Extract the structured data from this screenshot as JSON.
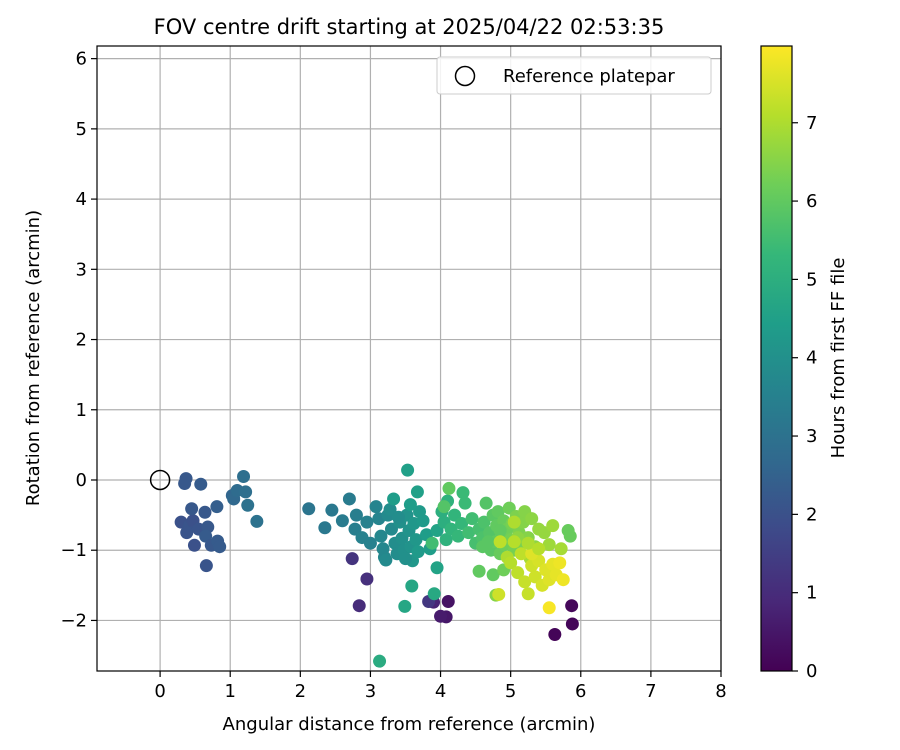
{
  "chart_data": {
    "type": "scatter",
    "title": "FOV centre drift starting at 2025/04/22 02:53:35",
    "xlabel": "Angular distance from reference (arcmin)",
    "ylabel": "Rotation from reference (arcmin)",
    "xlim": [
      -0.9,
      8.0
    ],
    "ylim": [
      -2.72,
      6.18
    ],
    "xticks": [
      "0",
      "1",
      "2",
      "3",
      "4",
      "5",
      "6",
      "7",
      "8"
    ],
    "yticks": [
      "−2",
      "−1",
      "0",
      "1",
      "2",
      "3",
      "4",
      "5",
      "6"
    ],
    "xtick_values": [
      0,
      1,
      2,
      3,
      4,
      5,
      6,
      7,
      8
    ],
    "ytick_values": [
      -2,
      -1,
      0,
      1,
      2,
      3,
      4,
      5,
      6
    ],
    "grid": true,
    "legend": {
      "position": "top-right",
      "entries": [
        {
          "label": "Reference platepar",
          "marker": "open-circle"
        }
      ]
    },
    "reference_point": {
      "x": 0,
      "y": 0
    },
    "colorbar": {
      "label": "Hours from first FF file",
      "range": [
        0,
        7.98
      ],
      "ticks": [
        "0",
        "1",
        "2",
        "3",
        "4",
        "5",
        "6",
        "7"
      ],
      "tick_values": [
        0,
        1,
        2,
        3,
        4,
        5,
        6,
        7
      ],
      "colormap": [
        "#440154",
        "#482878",
        "#3e4989",
        "#31688e",
        "#26828e",
        "#1f9e89",
        "#35b779",
        "#6ece58",
        "#b5de2b",
        "#fde725"
      ]
    },
    "points": [
      {
        "x": 5.87,
        "y": -1.79,
        "h": 0.15
      },
      {
        "x": 5.88,
        "y": -2.05,
        "h": 0.1
      },
      {
        "x": 5.63,
        "y": -2.2,
        "h": 0.1
      },
      {
        "x": 4.11,
        "y": -1.73,
        "h": 0.4
      },
      {
        "x": 4.08,
        "y": -1.95,
        "h": 0.5
      },
      {
        "x": 4.0,
        "y": -1.94,
        "h": 0.6
      },
      {
        "x": 3.9,
        "y": -1.74,
        "h": 0.8
      },
      {
        "x": 2.84,
        "y": -1.79,
        "h": 1.0
      },
      {
        "x": 2.95,
        "y": -1.41,
        "h": 1.1
      },
      {
        "x": 2.74,
        "y": -1.12,
        "h": 1.2
      },
      {
        "x": 3.83,
        "y": -1.73,
        "h": 1.3
      },
      {
        "x": 0.3,
        "y": -0.6,
        "h": 2.0
      },
      {
        "x": 0.35,
        "y": -0.05,
        "h": 2.2
      },
      {
        "x": 0.37,
        "y": 0.02,
        "h": 2.2
      },
      {
        "x": 0.58,
        "y": -0.06,
        "h": 2.3
      },
      {
        "x": 0.42,
        "y": -0.65,
        "h": 2.1
      },
      {
        "x": 0.38,
        "y": -0.75,
        "h": 2.1
      },
      {
        "x": 0.47,
        "y": -0.58,
        "h": 2.0
      },
      {
        "x": 0.49,
        "y": -0.93,
        "h": 2.0
      },
      {
        "x": 0.55,
        "y": -0.7,
        "h": 2.1
      },
      {
        "x": 0.45,
        "y": -0.41,
        "h": 2.2
      },
      {
        "x": 0.64,
        "y": -0.46,
        "h": 2.2
      },
      {
        "x": 0.68,
        "y": -0.67,
        "h": 2.2
      },
      {
        "x": 0.65,
        "y": -0.8,
        "h": 2.3
      },
      {
        "x": 0.66,
        "y": -1.22,
        "h": 2.1
      },
      {
        "x": 0.73,
        "y": -0.93,
        "h": 2.2
      },
      {
        "x": 0.82,
        "y": -0.87,
        "h": 2.3
      },
      {
        "x": 0.85,
        "y": -0.95,
        "h": 2.3
      },
      {
        "x": 0.81,
        "y": -0.38,
        "h": 2.4
      },
      {
        "x": 1.03,
        "y": -0.22,
        "h": 2.6
      },
      {
        "x": 1.05,
        "y": -0.27,
        "h": 2.7
      },
      {
        "x": 1.1,
        "y": -0.15,
        "h": 2.8
      },
      {
        "x": 1.19,
        "y": 0.05,
        "h": 2.9
      },
      {
        "x": 1.22,
        "y": -0.17,
        "h": 2.9
      },
      {
        "x": 1.25,
        "y": -0.36,
        "h": 3.0
      },
      {
        "x": 1.38,
        "y": -0.59,
        "h": 3.0
      },
      {
        "x": 2.12,
        "y": -0.41,
        "h": 3.1
      },
      {
        "x": 2.35,
        "y": -0.68,
        "h": 3.2
      },
      {
        "x": 2.45,
        "y": -0.43,
        "h": 3.2
      },
      {
        "x": 2.6,
        "y": -0.58,
        "h": 3.3
      },
      {
        "x": 2.7,
        "y": -0.27,
        "h": 3.3
      },
      {
        "x": 2.8,
        "y": -0.5,
        "h": 3.4
      },
      {
        "x": 2.78,
        "y": -0.7,
        "h": 3.4
      },
      {
        "x": 2.88,
        "y": -0.82,
        "h": 3.5
      },
      {
        "x": 2.95,
        "y": -0.6,
        "h": 3.5
      },
      {
        "x": 3.0,
        "y": -0.9,
        "h": 3.5
      },
      {
        "x": 3.08,
        "y": -0.38,
        "h": 3.6
      },
      {
        "x": 3.12,
        "y": -0.55,
        "h": 3.6
      },
      {
        "x": 3.15,
        "y": -0.8,
        "h": 3.7
      },
      {
        "x": 3.2,
        "y": -1.1,
        "h": 3.7
      },
      {
        "x": 3.25,
        "y": -0.5,
        "h": 3.8
      },
      {
        "x": 3.3,
        "y": -0.7,
        "h": 3.8
      },
      {
        "x": 3.35,
        "y": -0.9,
        "h": 3.9
      },
      {
        "x": 3.28,
        "y": -0.42,
        "h": 3.9
      },
      {
        "x": 3.38,
        "y": -1.05,
        "h": 3.9
      },
      {
        "x": 3.42,
        "y": -0.6,
        "h": 4.0
      },
      {
        "x": 3.45,
        "y": -0.83,
        "h": 4.0
      },
      {
        "x": 3.48,
        "y": -1.0,
        "h": 4.0
      },
      {
        "x": 3.52,
        "y": -0.5,
        "h": 4.1
      },
      {
        "x": 3.55,
        "y": -0.72,
        "h": 4.1
      },
      {
        "x": 3.58,
        "y": -0.95,
        "h": 4.1
      },
      {
        "x": 3.6,
        "y": -1.15,
        "h": 4.2
      },
      {
        "x": 3.62,
        "y": -0.62,
        "h": 4.2
      },
      {
        "x": 3.65,
        "y": -0.85,
        "h": 4.2
      },
      {
        "x": 3.68,
        "y": -1.02,
        "h": 4.3
      },
      {
        "x": 3.7,
        "y": -0.45,
        "h": 4.3
      },
      {
        "x": 3.75,
        "y": -0.58,
        "h": 4.3
      },
      {
        "x": 3.8,
        "y": -0.78,
        "h": 4.4
      },
      {
        "x": 3.85,
        "y": -0.98,
        "h": 4.4
      },
      {
        "x": 3.33,
        "y": -0.27,
        "h": 4.4
      },
      {
        "x": 3.4,
        "y": -0.53,
        "h": 3.9
      },
      {
        "x": 3.18,
        "y": -0.98,
        "h": 3.7
      },
      {
        "x": 3.22,
        "y": -1.14,
        "h": 3.8
      },
      {
        "x": 3.5,
        "y": -1.12,
        "h": 4.0
      },
      {
        "x": 3.53,
        "y": 0.14,
        "h": 4.5
      },
      {
        "x": 3.67,
        "y": -0.17,
        "h": 4.5
      },
      {
        "x": 3.57,
        "y": -0.35,
        "h": 4.4
      },
      {
        "x": 3.95,
        "y": -0.72,
        "h": 4.6
      },
      {
        "x": 3.95,
        "y": -1.25,
        "h": 4.6
      },
      {
        "x": 3.59,
        "y": -1.51,
        "h": 4.7
      },
      {
        "x": 3.49,
        "y": -1.8,
        "h": 4.7
      },
      {
        "x": 3.91,
        "y": -1.62,
        "h": 4.8
      },
      {
        "x": 3.13,
        "y": -2.58,
        "h": 4.9
      },
      {
        "x": 4.02,
        "y": -0.45,
        "h": 5.0
      },
      {
        "x": 4.05,
        "y": -0.6,
        "h": 5.0
      },
      {
        "x": 4.08,
        "y": -0.85,
        "h": 5.1
      },
      {
        "x": 4.1,
        "y": -0.3,
        "h": 5.1
      },
      {
        "x": 4.15,
        "y": -0.7,
        "h": 5.2
      },
      {
        "x": 4.2,
        "y": -0.5,
        "h": 5.2
      },
      {
        "x": 4.25,
        "y": -0.8,
        "h": 5.3
      },
      {
        "x": 4.3,
        "y": -0.62,
        "h": 5.3
      },
      {
        "x": 4.32,
        "y": -0.18,
        "h": 5.4
      },
      {
        "x": 4.35,
        "y": -0.33,
        "h": 5.4
      },
      {
        "x": 4.4,
        "y": -0.75,
        "h": 5.5
      },
      {
        "x": 4.45,
        "y": -0.55,
        "h": 5.5
      },
      {
        "x": 4.5,
        "y": -0.9,
        "h": 5.6
      },
      {
        "x": 4.55,
        "y": -0.7,
        "h": 5.6
      },
      {
        "x": 4.6,
        "y": -0.82,
        "h": 5.7
      },
      {
        "x": 4.62,
        "y": -0.6,
        "h": 5.7
      },
      {
        "x": 4.65,
        "y": -0.33,
        "h": 5.8
      },
      {
        "x": 4.7,
        "y": -0.75,
        "h": 5.8
      },
      {
        "x": 4.72,
        "y": -1.0,
        "h": 5.9
      },
      {
        "x": 4.75,
        "y": -0.5,
        "h": 5.9
      },
      {
        "x": 4.78,
        "y": -0.88,
        "h": 6.0
      },
      {
        "x": 4.8,
        "y": -0.65,
        "h": 6.0
      },
      {
        "x": 4.82,
        "y": -0.45,
        "h": 6.0
      },
      {
        "x": 4.85,
        "y": -1.05,
        "h": 6.1
      },
      {
        "x": 4.88,
        "y": -0.78,
        "h": 6.1
      },
      {
        "x": 4.9,
        "y": -0.58,
        "h": 6.1
      },
      {
        "x": 4.92,
        "y": -0.92,
        "h": 6.2
      },
      {
        "x": 4.95,
        "y": -0.7,
        "h": 6.2
      },
      {
        "x": 4.98,
        "y": -0.4,
        "h": 6.2
      },
      {
        "x": 5.0,
        "y": -0.85,
        "h": 6.3
      },
      {
        "x": 5.02,
        "y": -0.62,
        "h": 6.3
      },
      {
        "x": 5.05,
        "y": -1.0,
        "h": 6.3
      },
      {
        "x": 5.08,
        "y": -0.52,
        "h": 6.4
      },
      {
        "x": 5.12,
        "y": -0.75,
        "h": 6.4
      },
      {
        "x": 5.15,
        "y": -0.9,
        "h": 6.4
      },
      {
        "x": 5.18,
        "y": -0.6,
        "h": 6.5
      },
      {
        "x": 5.2,
        "y": -0.45,
        "h": 6.5
      },
      {
        "x": 5.25,
        "y": -0.82,
        "h": 6.5
      },
      {
        "x": 5.3,
        "y": -0.55,
        "h": 6.6
      },
      {
        "x": 5.35,
        "y": -0.95,
        "h": 6.6
      },
      {
        "x": 5.4,
        "y": -0.7,
        "h": 6.7
      },
      {
        "x": 5.48,
        "y": -0.75,
        "h": 6.7
      },
      {
        "x": 5.55,
        "y": -0.92,
        "h": 6.8
      },
      {
        "x": 5.6,
        "y": -0.65,
        "h": 6.8
      },
      {
        "x": 5.72,
        "y": -0.98,
        "h": 6.9
      },
      {
        "x": 5.82,
        "y": -0.72,
        "h": 6.1
      },
      {
        "x": 5.85,
        "y": -0.8,
        "h": 6.1
      },
      {
        "x": 4.55,
        "y": -1.3,
        "h": 6.0
      },
      {
        "x": 4.75,
        "y": -1.35,
        "h": 6.0
      },
      {
        "x": 4.9,
        "y": -1.28,
        "h": 6.2
      },
      {
        "x": 4.79,
        "y": -1.64,
        "h": 6.5
      },
      {
        "x": 4.12,
        "y": -0.12,
        "h": 6.0
      },
      {
        "x": 4.05,
        "y": -0.38,
        "h": 5.8
      },
      {
        "x": 3.88,
        "y": -0.9,
        "h": 5.5
      },
      {
        "x": 4.6,
        "y": -0.95,
        "h": 5.9
      },
      {
        "x": 4.68,
        "y": -0.88,
        "h": 5.9
      },
      {
        "x": 4.85,
        "y": -0.72,
        "h": 6.0
      },
      {
        "x": 5.1,
        "y": -0.82,
        "h": 6.6
      },
      {
        "x": 5.28,
        "y": -1.12,
        "h": 6.9
      },
      {
        "x": 4.95,
        "y": -1.1,
        "h": 7.0
      },
      {
        "x": 5.0,
        "y": -1.18,
        "h": 7.1
      },
      {
        "x": 5.05,
        "y": -0.88,
        "h": 7.1
      },
      {
        "x": 5.1,
        "y": -1.32,
        "h": 7.2
      },
      {
        "x": 5.15,
        "y": -1.05,
        "h": 7.2
      },
      {
        "x": 5.2,
        "y": -1.45,
        "h": 7.3
      },
      {
        "x": 5.25,
        "y": -1.62,
        "h": 7.3
      },
      {
        "x": 5.3,
        "y": -1.22,
        "h": 7.4
      },
      {
        "x": 5.35,
        "y": -1.38,
        "h": 7.4
      },
      {
        "x": 5.4,
        "y": -1.15,
        "h": 7.5
      },
      {
        "x": 5.45,
        "y": -1.5,
        "h": 7.5
      },
      {
        "x": 5.5,
        "y": -1.28,
        "h": 7.6
      },
      {
        "x": 5.55,
        "y": -1.42,
        "h": 7.6
      },
      {
        "x": 5.6,
        "y": -1.2,
        "h": 7.7
      },
      {
        "x": 5.65,
        "y": -1.35,
        "h": 7.7
      },
      {
        "x": 5.7,
        "y": -1.18,
        "h": 7.8
      },
      {
        "x": 5.75,
        "y": -1.42,
        "h": 7.8
      },
      {
        "x": 5.55,
        "y": -1.82,
        "h": 7.9
      },
      {
        "x": 5.3,
        "y": -1.05,
        "h": 7.6
      },
      {
        "x": 4.85,
        "y": -0.88,
        "h": 7.2
      },
      {
        "x": 5.05,
        "y": -0.6,
        "h": 7.0
      },
      {
        "x": 4.83,
        "y": -1.63,
        "h": 7.4
      },
      {
        "x": 5.25,
        "y": -0.9,
        "h": 7.0
      },
      {
        "x": 5.4,
        "y": -0.98,
        "h": 7.1
      }
    ]
  }
}
